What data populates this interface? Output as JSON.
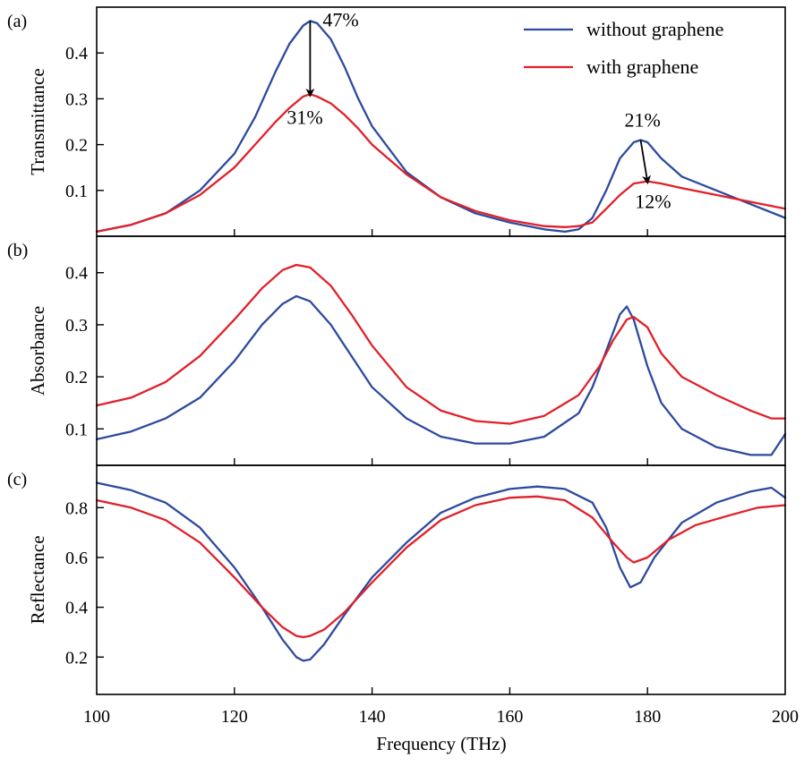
{
  "chart_data": {
    "type": "line",
    "xlabel": "Frequency (THz)",
    "xlim": [
      100,
      200
    ],
    "xticks": [
      100,
      120,
      140,
      160,
      180,
      200
    ],
    "colors": {
      "without graphene": "#2e4a9e",
      "with graphene": "#e0202a"
    },
    "legend": {
      "placement": "top-right",
      "entries": [
        "without graphene",
        "with graphene"
      ]
    },
    "panels": [
      {
        "label": "(a)",
        "ylabel": "Transmittance",
        "ylim": [
          0,
          0.5
        ],
        "yticks": [
          0.1,
          0.2,
          0.3,
          0.4
        ],
        "series": [
          {
            "name": "without graphene",
            "points": [
              [
                100,
                0.01
              ],
              [
                105,
                0.025
              ],
              [
                110,
                0.05
              ],
              [
                115,
                0.1
              ],
              [
                120,
                0.18
              ],
              [
                123,
                0.26
              ],
              [
                126,
                0.36
              ],
              [
                128,
                0.42
              ],
              [
                130,
                0.46
              ],
              [
                131,
                0.47
              ],
              [
                132,
                0.465
              ],
              [
                134,
                0.43
              ],
              [
                136,
                0.37
              ],
              [
                138,
                0.3
              ],
              [
                140,
                0.24
              ],
              [
                145,
                0.14
              ],
              [
                150,
                0.085
              ],
              [
                155,
                0.05
              ],
              [
                160,
                0.03
              ],
              [
                165,
                0.015
              ],
              [
                168,
                0.01
              ],
              [
                170,
                0.015
              ],
              [
                172,
                0.04
              ],
              [
                174,
                0.1
              ],
              [
                176,
                0.17
              ],
              [
                178,
                0.205
              ],
              [
                179,
                0.21
              ],
              [
                180,
                0.205
              ],
              [
                182,
                0.17
              ],
              [
                185,
                0.13
              ],
              [
                190,
                0.1
              ],
              [
                195,
                0.07
              ],
              [
                200,
                0.04
              ]
            ]
          },
          {
            "name": "with graphene",
            "points": [
              [
                100,
                0.01
              ],
              [
                105,
                0.025
              ],
              [
                110,
                0.05
              ],
              [
                115,
                0.09
              ],
              [
                120,
                0.15
              ],
              [
                123,
                0.2
              ],
              [
                126,
                0.25
              ],
              [
                128,
                0.28
              ],
              [
                130,
                0.305
              ],
              [
                131,
                0.31
              ],
              [
                132,
                0.305
              ],
              [
                134,
                0.29
              ],
              [
                136,
                0.265
              ],
              [
                138,
                0.235
              ],
              [
                140,
                0.2
              ],
              [
                145,
                0.135
              ],
              [
                150,
                0.085
              ],
              [
                155,
                0.055
              ],
              [
                160,
                0.035
              ],
              [
                165,
                0.022
              ],
              [
                168,
                0.02
              ],
              [
                170,
                0.022
              ],
              [
                172,
                0.03
              ],
              [
                174,
                0.06
              ],
              [
                176,
                0.09
              ],
              [
                178,
                0.115
              ],
              [
                180,
                0.12
              ],
              [
                182,
                0.115
              ],
              [
                185,
                0.105
              ],
              [
                190,
                0.09
              ],
              [
                195,
                0.075
              ],
              [
                200,
                0.06
              ]
            ]
          }
        ],
        "annotations": [
          {
            "text": "47%",
            "x": 131,
            "y": 0.47
          },
          {
            "text": "31%",
            "x": 131,
            "y": 0.31
          },
          {
            "text": "21%",
            "x": 179,
            "y": 0.21
          },
          {
            "text": "12%",
            "x": 180,
            "y": 0.12
          }
        ],
        "arrows": [
          {
            "from": [
              131,
              0.47
            ],
            "to": [
              131,
              0.305
            ]
          },
          {
            "from": [
              179,
              0.21
            ],
            "to": [
              180,
              0.115
            ]
          }
        ]
      },
      {
        "label": "(b)",
        "ylabel": "Absorbance",
        "ylim": [
          0.03,
          0.47
        ],
        "yticks": [
          0.1,
          0.2,
          0.3,
          0.4
        ],
        "series": [
          {
            "name": "without graphene",
            "points": [
              [
                100,
                0.08
              ],
              [
                105,
                0.095
              ],
              [
                110,
                0.12
              ],
              [
                115,
                0.16
              ],
              [
                120,
                0.23
              ],
              [
                124,
                0.3
              ],
              [
                127,
                0.34
              ],
              [
                129,
                0.355
              ],
              [
                131,
                0.345
              ],
              [
                134,
                0.3
              ],
              [
                137,
                0.24
              ],
              [
                140,
                0.18
              ],
              [
                145,
                0.12
              ],
              [
                150,
                0.085
              ],
              [
                155,
                0.072
              ],
              [
                160,
                0.072
              ],
              [
                165,
                0.085
              ],
              [
                170,
                0.13
              ],
              [
                172,
                0.18
              ],
              [
                174,
                0.25
              ],
              [
                176,
                0.32
              ],
              [
                177,
                0.335
              ],
              [
                178,
                0.31
              ],
              [
                180,
                0.22
              ],
              [
                182,
                0.15
              ],
              [
                185,
                0.1
              ],
              [
                190,
                0.065
              ],
              [
                195,
                0.05
              ],
              [
                198,
                0.05
              ],
              [
                200,
                0.09
              ]
            ]
          },
          {
            "name": "with graphene",
            "points": [
              [
                100,
                0.145
              ],
              [
                105,
                0.16
              ],
              [
                110,
                0.19
              ],
              [
                115,
                0.24
              ],
              [
                120,
                0.31
              ],
              [
                124,
                0.37
              ],
              [
                127,
                0.405
              ],
              [
                129,
                0.415
              ],
              [
                131,
                0.41
              ],
              [
                134,
                0.375
              ],
              [
                137,
                0.32
              ],
              [
                140,
                0.26
              ],
              [
                145,
                0.18
              ],
              [
                150,
                0.135
              ],
              [
                155,
                0.115
              ],
              [
                160,
                0.11
              ],
              [
                165,
                0.125
              ],
              [
                170,
                0.165
              ],
              [
                173,
                0.22
              ],
              [
                175,
                0.27
              ],
              [
                177,
                0.31
              ],
              [
                178,
                0.315
              ],
              [
                180,
                0.295
              ],
              [
                182,
                0.245
              ],
              [
                185,
                0.2
              ],
              [
                190,
                0.165
              ],
              [
                195,
                0.135
              ],
              [
                198,
                0.12
              ],
              [
                200,
                0.12
              ]
            ]
          }
        ]
      },
      {
        "label": "(c)",
        "ylabel": "Reflectance",
        "ylim": [
          0.05,
          0.97
        ],
        "yticks": [
          0.2,
          0.4,
          0.6,
          0.8
        ],
        "series": [
          {
            "name": "without graphene",
            "points": [
              [
                100,
                0.9
              ],
              [
                105,
                0.87
              ],
              [
                110,
                0.82
              ],
              [
                115,
                0.72
              ],
              [
                120,
                0.56
              ],
              [
                124,
                0.4
              ],
              [
                127,
                0.27
              ],
              [
                129,
                0.2
              ],
              [
                130,
                0.185
              ],
              [
                131,
                0.19
              ],
              [
                133,
                0.25
              ],
              [
                136,
                0.37
              ],
              [
                140,
                0.52
              ],
              [
                145,
                0.66
              ],
              [
                150,
                0.78
              ],
              [
                155,
                0.84
              ],
              [
                160,
                0.875
              ],
              [
                164,
                0.885
              ],
              [
                168,
                0.875
              ],
              [
                172,
                0.82
              ],
              [
                174,
                0.72
              ],
              [
                176,
                0.56
              ],
              [
                177.5,
                0.48
              ],
              [
                179,
                0.5
              ],
              [
                181,
                0.6
              ],
              [
                185,
                0.74
              ],
              [
                190,
                0.82
              ],
              [
                195,
                0.865
              ],
              [
                198,
                0.88
              ],
              [
                200,
                0.84
              ]
            ]
          },
          {
            "name": "with graphene",
            "points": [
              [
                100,
                0.83
              ],
              [
                105,
                0.8
              ],
              [
                110,
                0.75
              ],
              [
                115,
                0.66
              ],
              [
                120,
                0.52
              ],
              [
                124,
                0.4
              ],
              [
                127,
                0.32
              ],
              [
                129,
                0.285
              ],
              [
                130,
                0.28
              ],
              [
                131,
                0.285
              ],
              [
                133,
                0.31
              ],
              [
                136,
                0.38
              ],
              [
                140,
                0.5
              ],
              [
                145,
                0.64
              ],
              [
                150,
                0.75
              ],
              [
                155,
                0.81
              ],
              [
                160,
                0.84
              ],
              [
                164,
                0.845
              ],
              [
                168,
                0.83
              ],
              [
                172,
                0.76
              ],
              [
                175,
                0.66
              ],
              [
                177,
                0.6
              ],
              [
                178,
                0.58
              ],
              [
                180,
                0.6
              ],
              [
                183,
                0.67
              ],
              [
                187,
                0.73
              ],
              [
                192,
                0.77
              ],
              [
                196,
                0.8
              ],
              [
                200,
                0.81
              ]
            ]
          }
        ]
      }
    ]
  }
}
